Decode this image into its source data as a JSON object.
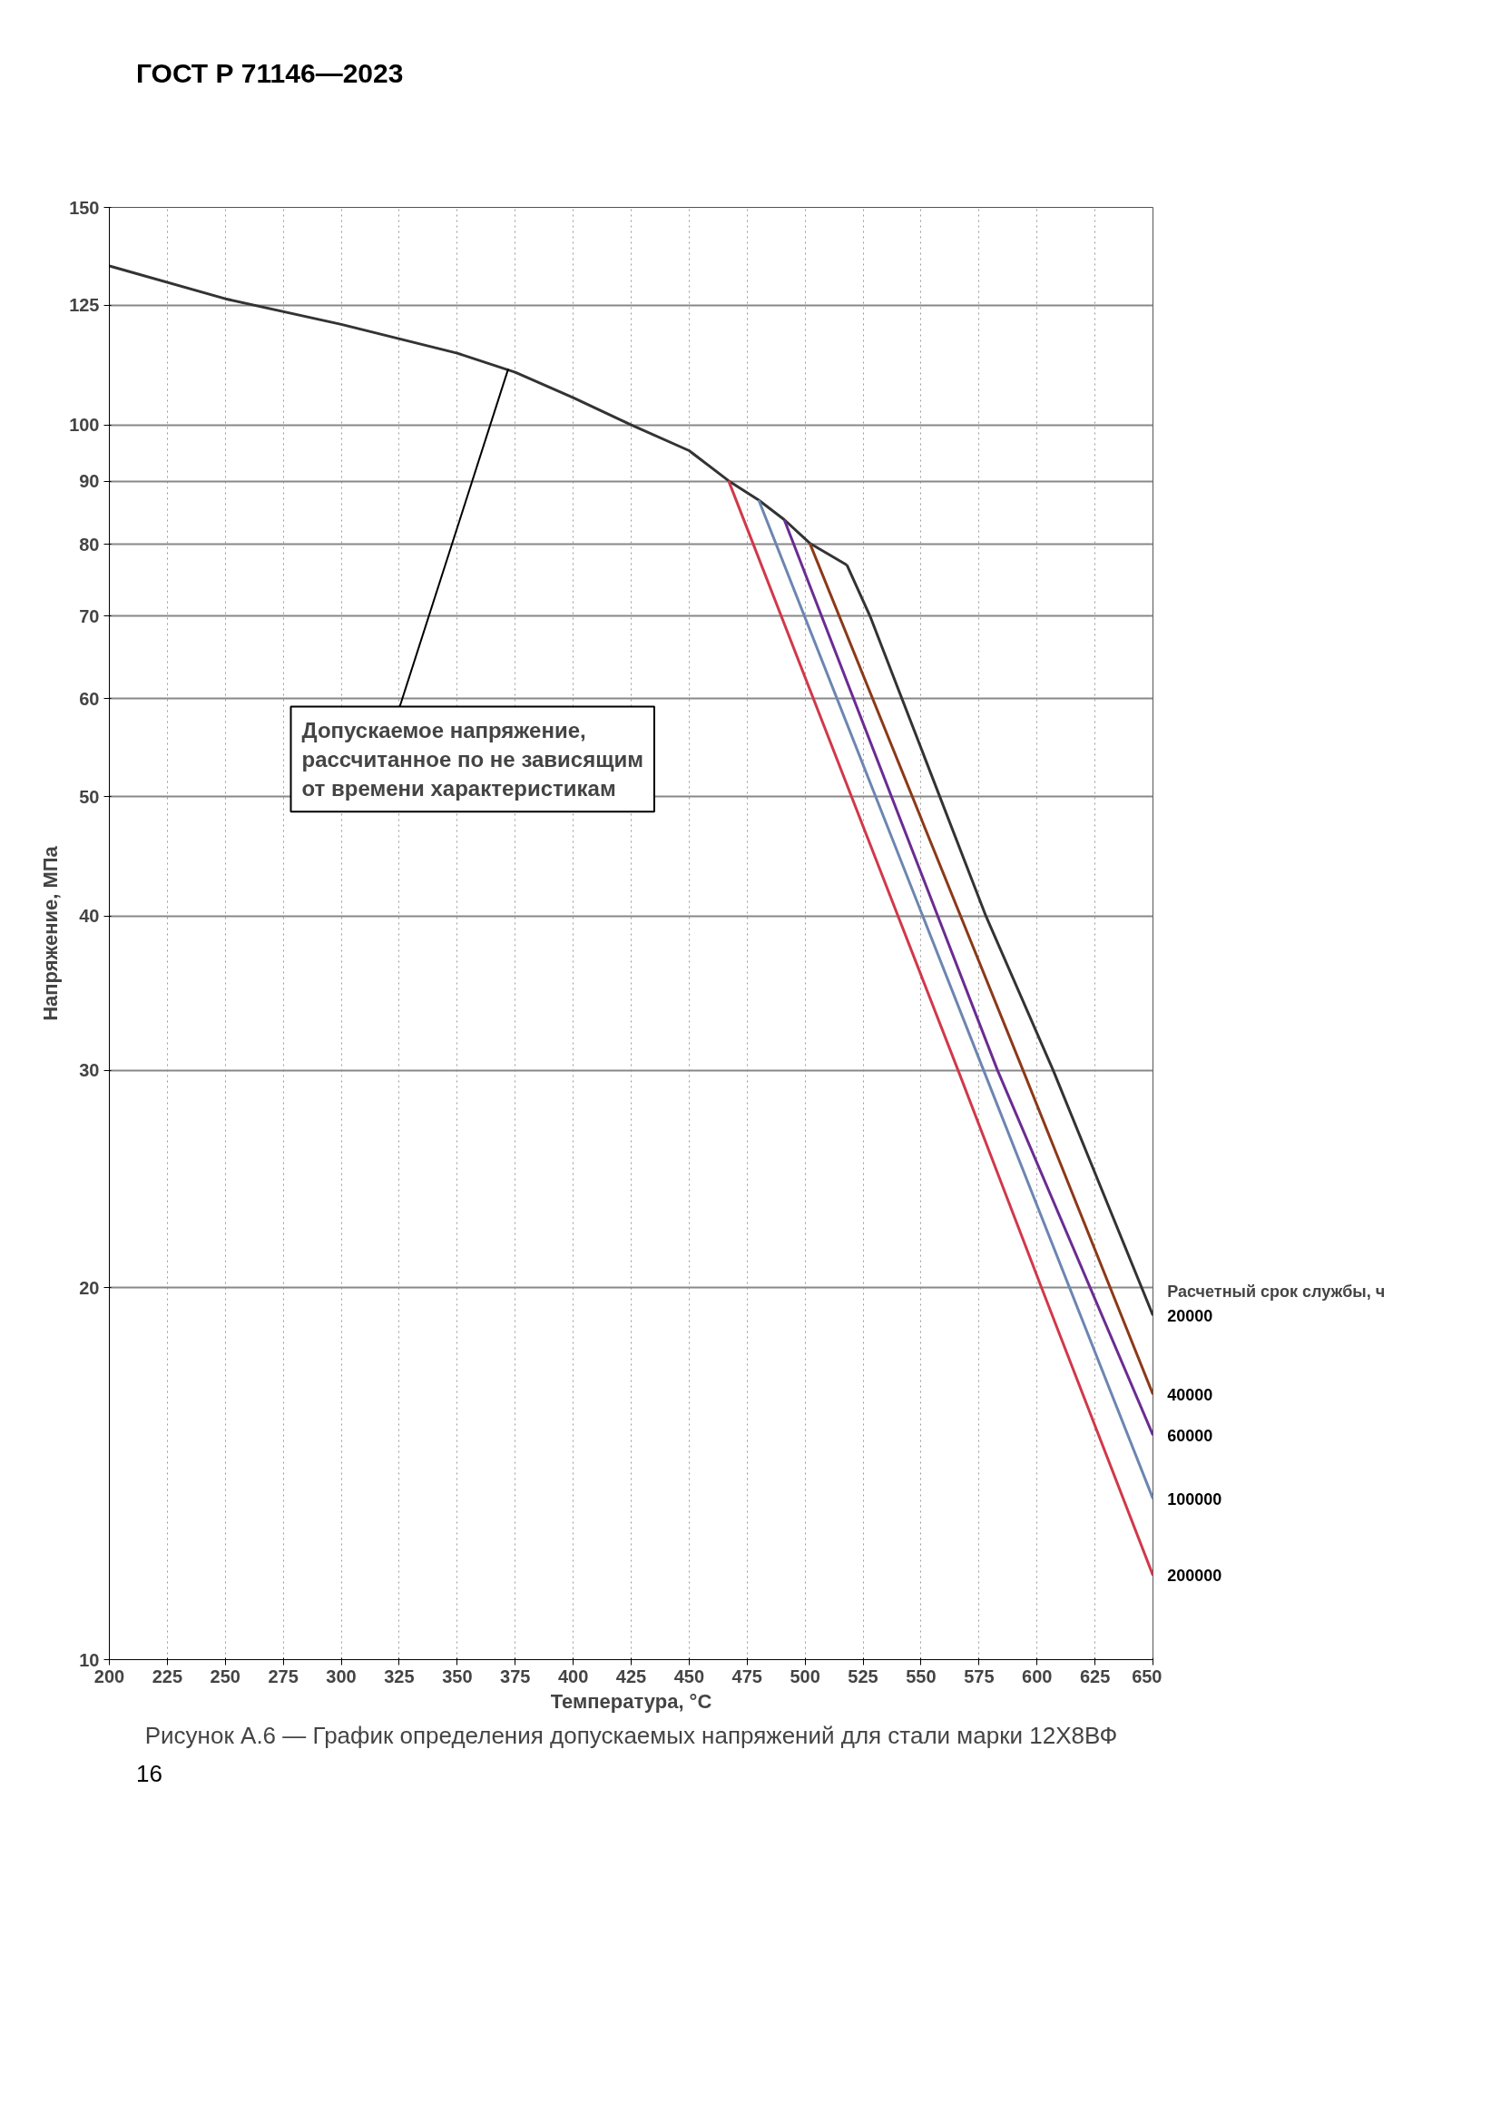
{
  "chart_data": {
    "type": "line",
    "title": "Рисунок А.6 — График определения допускаемых напряжений для стали марки 12Х8ВФ",
    "xlabel": "Температура, °С",
    "ylabel": "Напряжение, МПа",
    "legend_title": "Расчетный срок службы, ч",
    "log": "y",
    "grid": true,
    "line_style": "solid",
    "marker": "none",
    "xlim": [
      200,
      650
    ],
    "xticks": [
      200,
      225,
      250,
      275,
      300,
      325,
      350,
      375,
      400,
      425,
      450,
      475,
      500,
      525,
      550,
      575,
      600,
      625,
      650
    ],
    "ylim": [
      10,
      150
    ],
    "yticks": [
      10,
      20,
      30,
      40,
      50,
      60,
      70,
      80,
      90,
      100,
      125,
      150
    ],
    "series": [
      {
        "color": "#333333",
        "x": [
          200,
          250,
          300,
          350,
          375,
          400,
          425,
          450,
          467,
          480,
          491,
          502,
          518
        ],
        "values": [
          134.5,
          126.5,
          120.6,
          114.3,
          110.3,
          105.2,
          100,
          95.3,
          90.1,
          86.9,
          83.8,
          80.2,
          77
        ]
      },
      {
        "name": "20000",
        "color": "#333333",
        "x": [
          518,
          528,
          578,
          607,
          650
        ],
        "values": [
          77,
          70,
          40,
          30,
          19
        ]
      },
      {
        "name": "40000",
        "color": "#8b3a1a",
        "x": [
          502,
          594,
          650
        ],
        "values": [
          80.2,
          30,
          16.4
        ]
      },
      {
        "name": "60000",
        "color": "#6a2c91",
        "x": [
          491,
          583,
          650
        ],
        "values": [
          83.8,
          30,
          15.2
        ]
      },
      {
        "name": "100000",
        "color": "#6c86b0",
        "x": [
          480,
          577,
          650
        ],
        "values": [
          86.9,
          30,
          13.5
        ]
      },
      {
        "name": "200000",
        "color": "#d0394a",
        "x": [
          467,
          566,
          602,
          650
        ],
        "values": [
          90.1,
          30,
          20,
          11.7
        ]
      }
    ],
    "annotations": [
      "ГОСТ Р 71146—2023",
      {
        "text": "Допускаемое напряжение,\nрассчитанное по не зависящим\nот времени характеристикам",
        "x": 372,
        "y": 111
      },
      "16"
    ]
  }
}
